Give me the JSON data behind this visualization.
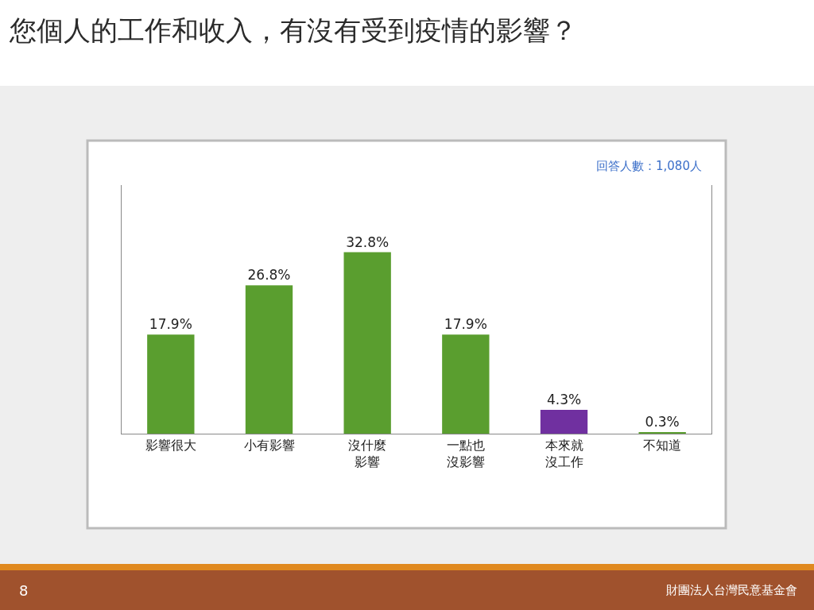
{
  "chart_data": {
    "type": "bar",
    "title": "您個人的工作和收入，有沒有受到疫情的影響？",
    "categories": [
      "影響很大",
      "小有影響",
      "沒什麼影響",
      "一點也沒影響",
      "本來就沒工作",
      "不知道"
    ],
    "values": [
      17.9,
      26.8,
      32.8,
      17.9,
      4.3,
      0.3
    ],
    "value_labels": [
      "17.9%",
      "26.8%",
      "32.8%",
      "17.9%",
      "4.3%",
      "0.3%"
    ],
    "colors": [
      "#5a9e2f",
      "#5a9e2f",
      "#5a9e2f",
      "#5a9e2f",
      "#7030a0",
      "#5a9e2f"
    ],
    "tick_labels": "x",
    "legend": false,
    "annotations": [
      "回答人數：1,080人",
      "8",
      "財團法人台灣民意基金會"
    ]
  }
}
